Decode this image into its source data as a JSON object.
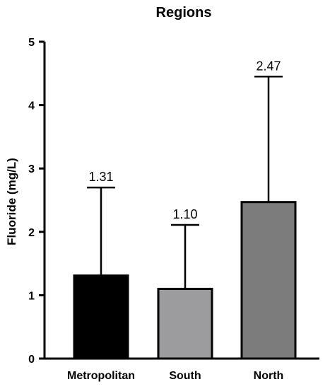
{
  "chart_data": {
    "type": "bar",
    "title": "Regions",
    "xlabel": "",
    "ylabel": "Fluoride (mg/L)",
    "ylim": [
      0,
      5
    ],
    "yticks": [
      "0",
      "1",
      "2",
      "3",
      "4",
      "5"
    ],
    "categories": [
      "Metropolitan",
      "South",
      "North"
    ],
    "values": [
      1.31,
      1.1,
      2.47
    ],
    "value_labels": [
      "1.31",
      "1.10",
      "2.47"
    ],
    "error_upper": [
      2.7,
      2.11,
      4.45
    ],
    "colors": [
      "#000000",
      "#9c9c9e",
      "#7b7b7b"
    ],
    "grid": false,
    "legend": "none"
  }
}
